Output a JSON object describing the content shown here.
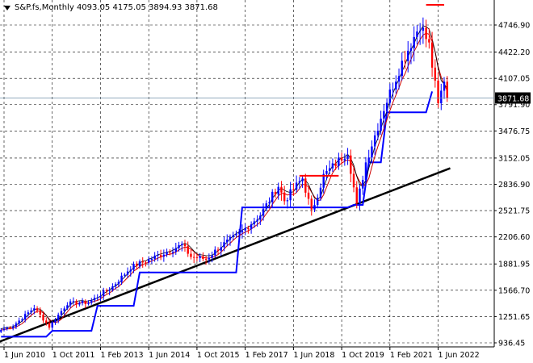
{
  "title_bar": {
    "symbol_label": "S&P.fs,Monthly",
    "ohlc": "4093.05 4175.05 3894.93 3871.68"
  },
  "colors": {
    "background": "#ffffff",
    "grid": "#000000",
    "bull": "#0000ff",
    "bear": "#ff0000",
    "ma_fast": "#cc0000",
    "ma_mid": "#000000",
    "support_line": "#0000ff",
    "trendline": "#000000",
    "price_tag_bg": "#000000",
    "price_tag_fg": "#ffffff"
  },
  "chart_data": {
    "type": "candlestick",
    "price_axis_ticks": [
      "4746.90",
      "4422.20",
      "4107.05",
      "3791.90",
      "3476.75",
      "3152.05",
      "2836.90",
      "2521.75",
      "2206.60",
      "1881.95",
      "1566.70",
      "1251.65",
      "936.45"
    ],
    "price_axis_values": [
      4746.9,
      4422.2,
      4107.05,
      3791.9,
      3476.75,
      3152.05,
      2836.9,
      2521.75,
      2206.6,
      1881.95,
      1566.7,
      1251.65,
      936.45
    ],
    "current_price": "3871.68",
    "time_axis_labels": [
      "1 Jun 2010",
      "1 Oct 2011",
      "1 Feb 2013",
      "1 Jun 2014",
      "1 Oct 2015",
      "1 Feb 2017",
      "1 Jun 2018",
      "1 Oct 2019",
      "1 Feb 2021",
      "1 Jun 2022"
    ],
    "anchor_points": [
      {
        "t": "2010-05",
        "price": 1090
      },
      {
        "t": "2010-09",
        "price": 1140
      },
      {
        "t": "2011-04",
        "price": 1360
      },
      {
        "t": "2011-09",
        "price": 1130
      },
      {
        "t": "2012-03",
        "price": 1410
      },
      {
        "t": "2012-10",
        "price": 1420
      },
      {
        "t": "2013-06",
        "price": 1610
      },
      {
        "t": "2013-12",
        "price": 1840
      },
      {
        "t": "2014-09",
        "price": 1980
      },
      {
        "t": "2015-05",
        "price": 2110
      },
      {
        "t": "2015-08",
        "price": 1970
      },
      {
        "t": "2016-01",
        "price": 1940
      },
      {
        "t": "2016-06",
        "price": 2100
      },
      {
        "t": "2016-12",
        "price": 2240
      },
      {
        "t": "2017-07",
        "price": 2470
      },
      {
        "t": "2018-01",
        "price": 2820
      },
      {
        "t": "2018-03",
        "price": 2640
      },
      {
        "t": "2018-09",
        "price": 2910
      },
      {
        "t": "2018-12",
        "price": 2500
      },
      {
        "t": "2019-04",
        "price": 2940
      },
      {
        "t": "2019-12",
        "price": 3230
      },
      {
        "t": "2020-03",
        "price": 2580
      },
      {
        "t": "2020-06",
        "price": 3100
      },
      {
        "t": "2020-12",
        "price": 3750
      },
      {
        "t": "2021-06",
        "price": 4300
      },
      {
        "t": "2021-12",
        "price": 4760
      },
      {
        "t": "2022-03",
        "price": 4500
      },
      {
        "t": "2022-06",
        "price": 3780
      },
      {
        "t": "2022-08",
        "price": 4100
      },
      {
        "t": "2022-09",
        "price": 3871.68
      }
    ],
    "support_steps": [
      {
        "t": "2010-05",
        "price": 1010
      },
      {
        "t": "2011-10",
        "price": 1080
      },
      {
        "t": "2013-01",
        "price": 1380
      },
      {
        "t": "2014-03",
        "price": 1780
      },
      {
        "t": "2016-02",
        "price": 1780
      },
      {
        "t": "2017-01",
        "price": 2560
      },
      {
        "t": "2018-10",
        "price": 2560
      },
      {
        "t": "2020-02",
        "price": 2590
      },
      {
        "t": "2020-07",
        "price": 3100
      },
      {
        "t": "2021-01",
        "price": 3700
      },
      {
        "t": "2022-04",
        "price": 3950
      }
    ],
    "trendline": {
      "from": {
        "t": "2010-03",
        "price": 930
      },
      "to": {
        "t": "2022-10",
        "price": 3030
      }
    },
    "resistance_marks": [
      {
        "from": "2018-08",
        "to": "2019-09",
        "price": 2940
      },
      {
        "from": "2022-02",
        "to": "2022-08",
        "price": 5150
      }
    ],
    "moving_averages": [
      "fast (red)",
      "slow (black)"
    ],
    "grid": true
  }
}
